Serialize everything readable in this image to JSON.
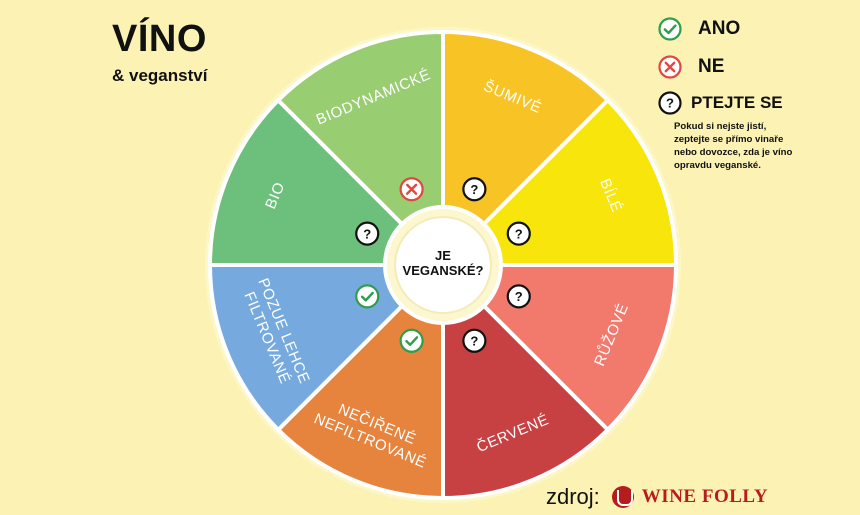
{
  "header": {
    "title": "VÍNO",
    "subtitle": "& veganství"
  },
  "legend": {
    "yes": {
      "label": "ANO",
      "icon": "check-icon",
      "color": "#2e9e4a"
    },
    "no": {
      "label": "NE",
      "icon": "cross-icon",
      "color": "#e0483e"
    },
    "ask": {
      "label": "PTEJTE SE",
      "icon": "question-icon",
      "color": "#111111"
    },
    "note": "Pokud si nejste jistí, zeptejte se přímo vinaře nebo dovozce, zda je víno opravdu veganské."
  },
  "center": {
    "line1": "JE",
    "line2": "VEGANSKÉ?"
  },
  "segments": [
    {
      "label": "ŠUMIVÉ",
      "status": "ask",
      "color": "#f7c325"
    },
    {
      "label": "BÍLÉ",
      "status": "ask",
      "color": "#f8e50b"
    },
    {
      "label": "RŮŽOVÉ",
      "status": "ask",
      "color": "#f17a6c"
    },
    {
      "label": "ČERVENÉ",
      "status": "ask",
      "color": "#c74042"
    },
    {
      "label": "NEČIŘENÉ NEFILTROVANÉ",
      "status": "yes",
      "color": "#e6843e"
    },
    {
      "label": "POZUE LEHCE FILTROVANÉ",
      "status": "yes",
      "color": "#76aade"
    },
    {
      "label": "BIO",
      "status": "ask",
      "color": "#6dc07b"
    },
    {
      "label": "BIODYNAMICKÉ",
      "status": "no",
      "color": "#99cd72"
    }
  ],
  "source": {
    "label": "zdroj:",
    "brand": "WINE FOLLY"
  }
}
